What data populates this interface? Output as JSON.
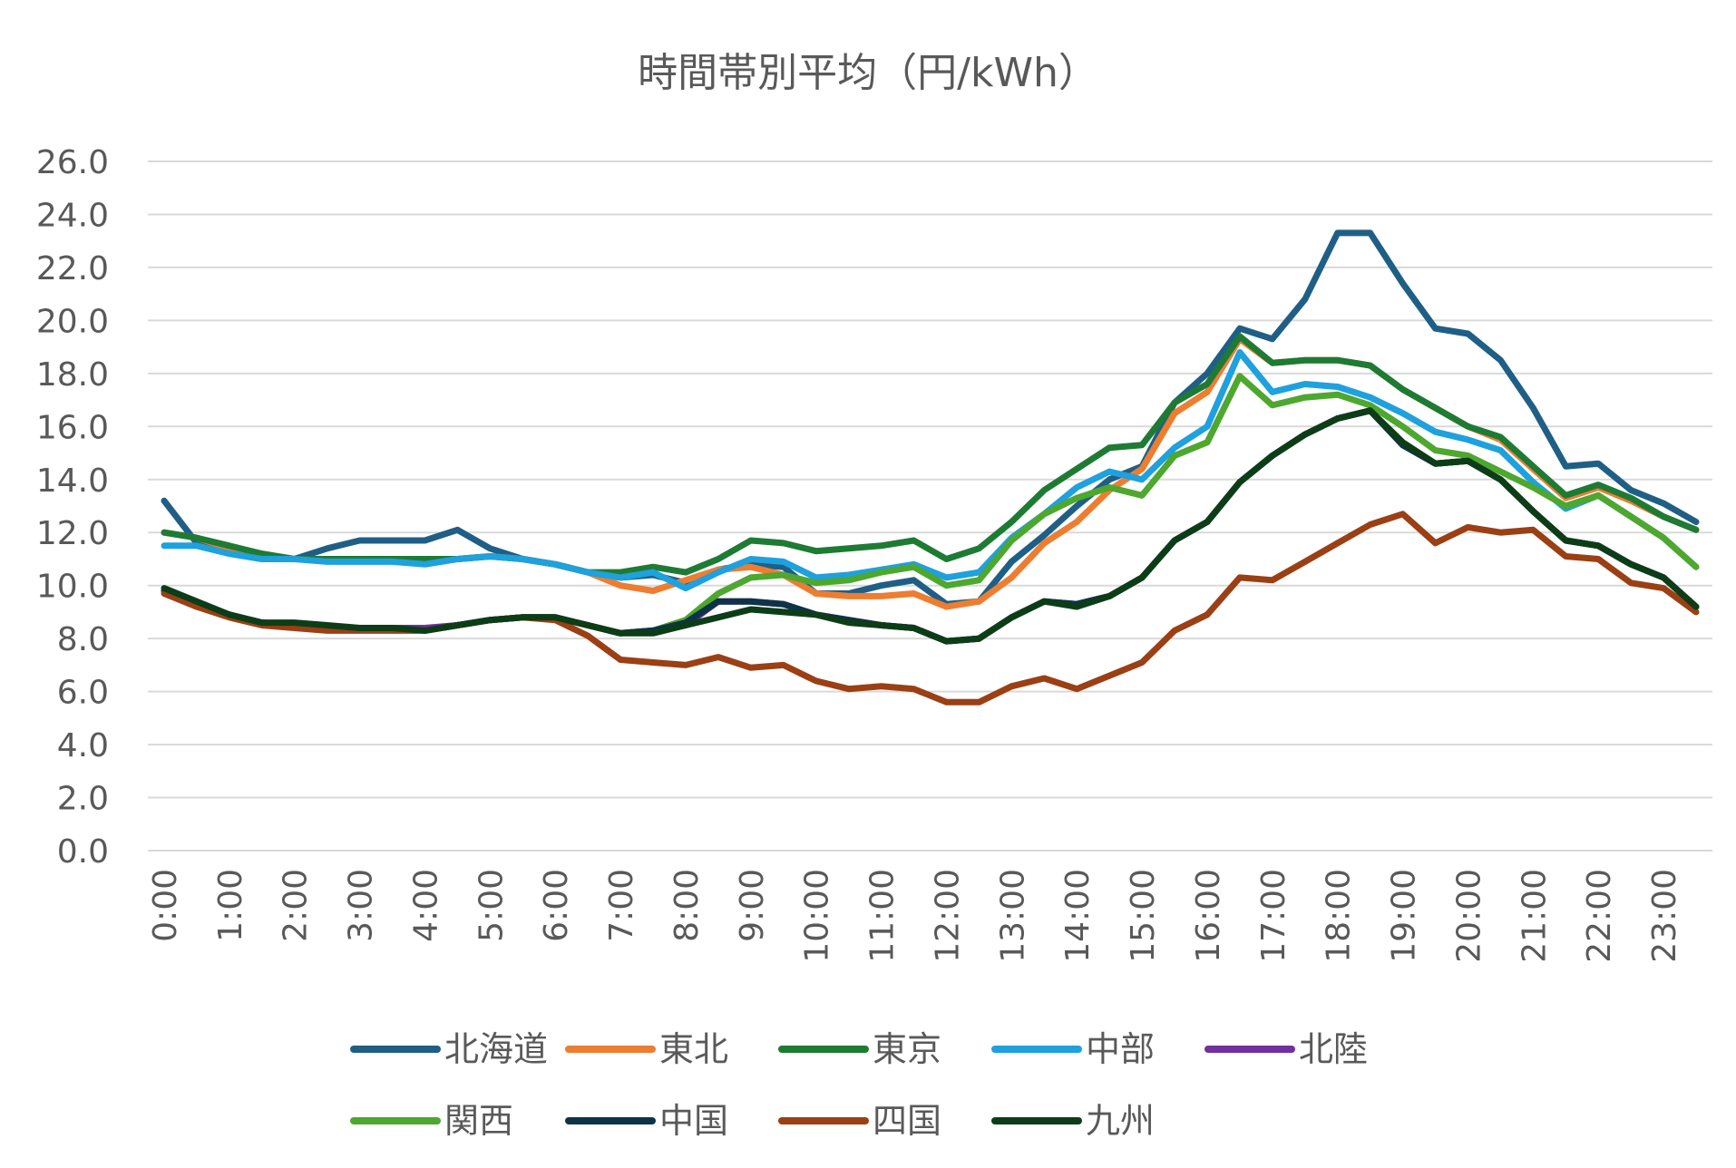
{
  "chart_data": {
    "type": "line",
    "title": "時間帯別平均（円/kWh）",
    "xlabel": "",
    "ylabel": "",
    "ylim": [
      0,
      26
    ],
    "ytick_labels": [
      "0.0",
      "2.0",
      "4.0",
      "6.0",
      "8.0",
      "10.0",
      "12.0",
      "14.0",
      "16.0",
      "18.0",
      "20.0",
      "22.0",
      "24.0",
      "26.0"
    ],
    "ytick_values": [
      0,
      2,
      4,
      6,
      8,
      10,
      12,
      14,
      16,
      18,
      20,
      22,
      24,
      26
    ],
    "x": [
      "0:00",
      "0:30",
      "1:00",
      "1:30",
      "2:00",
      "2:30",
      "3:00",
      "3:30",
      "4:00",
      "4:30",
      "5:00",
      "5:30",
      "6:00",
      "6:30",
      "7:00",
      "7:30",
      "8:00",
      "8:30",
      "9:00",
      "9:30",
      "10:00",
      "10:30",
      "11:00",
      "11:30",
      "12:00",
      "12:30",
      "13:00",
      "13:30",
      "14:00",
      "14:30",
      "15:00",
      "15:30",
      "16:00",
      "16:30",
      "17:00",
      "17:30",
      "18:00",
      "18:30",
      "19:00",
      "19:30",
      "20:00",
      "20:30",
      "21:00",
      "21:30",
      "22:00",
      "22:30",
      "23:00",
      "23:30"
    ],
    "xtick_labels": [
      "0:00",
      "1:00",
      "2:00",
      "3:00",
      "4:00",
      "5:00",
      "6:00",
      "7:00",
      "8:00",
      "9:00",
      "10:00",
      "11:00",
      "12:00",
      "13:00",
      "14:00",
      "15:00",
      "16:00",
      "17:00",
      "18:00",
      "19:00",
      "20:00",
      "21:00",
      "22:00",
      "23:00"
    ],
    "grid": true,
    "legend_position": "bottom",
    "series": [
      {
        "name": "北海道",
        "color": "#1f5f86",
        "values": [
          13.2,
          11.6,
          11.3,
          11.1,
          11.0,
          11.4,
          11.7,
          11.7,
          11.7,
          12.1,
          11.4,
          11.0,
          10.8,
          10.5,
          10.3,
          10.4,
          10.1,
          10.6,
          10.8,
          10.7,
          9.7,
          9.7,
          10.0,
          10.2,
          9.3,
          9.4,
          10.9,
          11.9,
          13.0,
          14.0,
          14.5,
          16.9,
          18.0,
          19.7,
          19.3,
          20.8,
          23.3,
          23.3,
          21.4,
          19.7,
          19.5,
          18.5,
          16.7,
          14.5,
          14.6,
          13.6,
          13.1,
          12.4
        ]
      },
      {
        "name": "東北",
        "color": "#ed7d31",
        "values": [
          12.0,
          11.8,
          11.4,
          11.1,
          11.0,
          11.0,
          11.0,
          11.0,
          11.0,
          11.0,
          11.1,
          11.0,
          10.8,
          10.5,
          10.0,
          9.8,
          10.2,
          10.6,
          10.7,
          10.4,
          9.7,
          9.6,
          9.6,
          9.7,
          9.2,
          9.4,
          10.3,
          11.6,
          12.4,
          13.6,
          14.4,
          16.5,
          17.3,
          19.3,
          18.4,
          18.5,
          18.5,
          18.3,
          17.4,
          16.7,
          16.0,
          15.5,
          14.4,
          13.3,
          13.7,
          13.2,
          12.6,
          12.1
        ]
      },
      {
        "name": "東京",
        "color": "#1e7b34",
        "values": [
          12.0,
          11.8,
          11.5,
          11.2,
          11.0,
          11.0,
          11.0,
          11.0,
          11.0,
          11.0,
          11.1,
          11.0,
          10.8,
          10.5,
          10.5,
          10.7,
          10.5,
          11.0,
          11.7,
          11.6,
          11.3,
          11.4,
          11.5,
          11.7,
          11.0,
          11.4,
          12.4,
          13.6,
          14.4,
          15.2,
          15.3,
          16.9,
          17.6,
          19.4,
          18.4,
          18.5,
          18.5,
          18.3,
          17.4,
          16.7,
          16.0,
          15.6,
          14.5,
          13.4,
          13.8,
          13.3,
          12.6,
          12.1
        ]
      },
      {
        "name": "中部",
        "color": "#1ea1dd",
        "values": [
          11.5,
          11.5,
          11.2,
          11.0,
          11.0,
          10.9,
          10.9,
          10.9,
          10.8,
          11.0,
          11.1,
          11.0,
          10.8,
          10.5,
          10.3,
          10.5,
          9.9,
          10.5,
          11.0,
          10.9,
          10.3,
          10.4,
          10.6,
          10.8,
          10.3,
          10.5,
          11.8,
          12.7,
          13.7,
          14.3,
          14.0,
          15.2,
          16.0,
          18.8,
          17.3,
          17.6,
          17.5,
          17.1,
          16.5,
          15.8,
          15.5,
          15.1,
          13.9,
          12.9,
          13.4,
          12.6,
          11.8,
          10.7
        ]
      },
      {
        "name": "北陸",
        "color": "#7030a0",
        "values": [
          9.8,
          9.3,
          8.9,
          8.6,
          8.5,
          8.4,
          8.4,
          8.4,
          8.4,
          8.5,
          8.7,
          8.8,
          8.8,
          8.5,
          8.2,
          8.3,
          8.5,
          9.4,
          9.4,
          9.3,
          8.9,
          8.7,
          8.5,
          8.4,
          7.9,
          8.0,
          8.8,
          9.4,
          9.3,
          9.6,
          10.3,
          11.7,
          12.4,
          13.9,
          14.9,
          15.7,
          16.3,
          16.6,
          15.3,
          14.6,
          14.7,
          14.0,
          12.8,
          11.7,
          11.5,
          10.8,
          10.3,
          9.2
        ]
      },
      {
        "name": "関西",
        "color": "#4ea72e",
        "values": [
          9.8,
          9.3,
          8.9,
          8.6,
          8.5,
          8.4,
          8.4,
          8.4,
          8.3,
          8.5,
          8.7,
          8.8,
          8.8,
          8.5,
          8.2,
          8.3,
          8.7,
          9.7,
          10.3,
          10.4,
          10.1,
          10.2,
          10.5,
          10.7,
          10.0,
          10.2,
          11.7,
          12.7,
          13.3,
          13.7,
          13.4,
          14.9,
          15.4,
          17.9,
          16.8,
          17.1,
          17.2,
          16.8,
          16.0,
          15.1,
          14.9,
          14.3,
          13.7,
          13.0,
          13.4,
          12.6,
          11.8,
          10.7
        ]
      },
      {
        "name": "中国",
        "color": "#0e3349",
        "values": [
          9.8,
          9.3,
          8.9,
          8.6,
          8.5,
          8.4,
          8.4,
          8.4,
          8.3,
          8.5,
          8.7,
          8.8,
          8.8,
          8.5,
          8.2,
          8.3,
          8.6,
          9.4,
          9.4,
          9.3,
          8.9,
          8.7,
          8.5,
          8.4,
          7.9,
          8.0,
          8.8,
          9.4,
          9.3,
          9.6,
          10.3,
          11.7,
          12.4,
          13.9,
          14.9,
          15.7,
          16.3,
          16.6,
          15.3,
          14.6,
          14.7,
          14.0,
          12.8,
          11.7,
          11.5,
          10.8,
          10.3,
          9.2
        ]
      },
      {
        "name": "四国",
        "color": "#9b3f14",
        "values": [
          9.7,
          9.2,
          8.8,
          8.5,
          8.4,
          8.3,
          8.3,
          8.3,
          8.3,
          8.5,
          8.7,
          8.8,
          8.7,
          8.1,
          7.2,
          7.1,
          7.0,
          7.3,
          6.9,
          7.0,
          6.4,
          6.1,
          6.2,
          6.1,
          5.6,
          5.6,
          6.2,
          6.5,
          6.1,
          6.6,
          7.1,
          8.3,
          8.9,
          10.3,
          10.2,
          10.9,
          11.6,
          12.3,
          12.7,
          11.6,
          12.2,
          12.0,
          12.1,
          11.1,
          11.0,
          10.1,
          9.9,
          9.0
        ]
      },
      {
        "name": "九州",
        "color": "#0c3d17",
        "values": [
          9.9,
          9.4,
          8.9,
          8.6,
          8.6,
          8.5,
          8.4,
          8.4,
          8.3,
          8.5,
          8.7,
          8.8,
          8.8,
          8.5,
          8.2,
          8.2,
          8.5,
          8.8,
          9.1,
          9.0,
          8.9,
          8.6,
          8.5,
          8.4,
          7.9,
          8.0,
          8.8,
          9.4,
          9.2,
          9.6,
          10.3,
          11.7,
          12.4,
          13.9,
          14.9,
          15.7,
          16.3,
          16.6,
          15.4,
          14.6,
          14.7,
          14.0,
          12.8,
          11.7,
          11.5,
          10.8,
          10.3,
          9.2
        ]
      }
    ]
  }
}
